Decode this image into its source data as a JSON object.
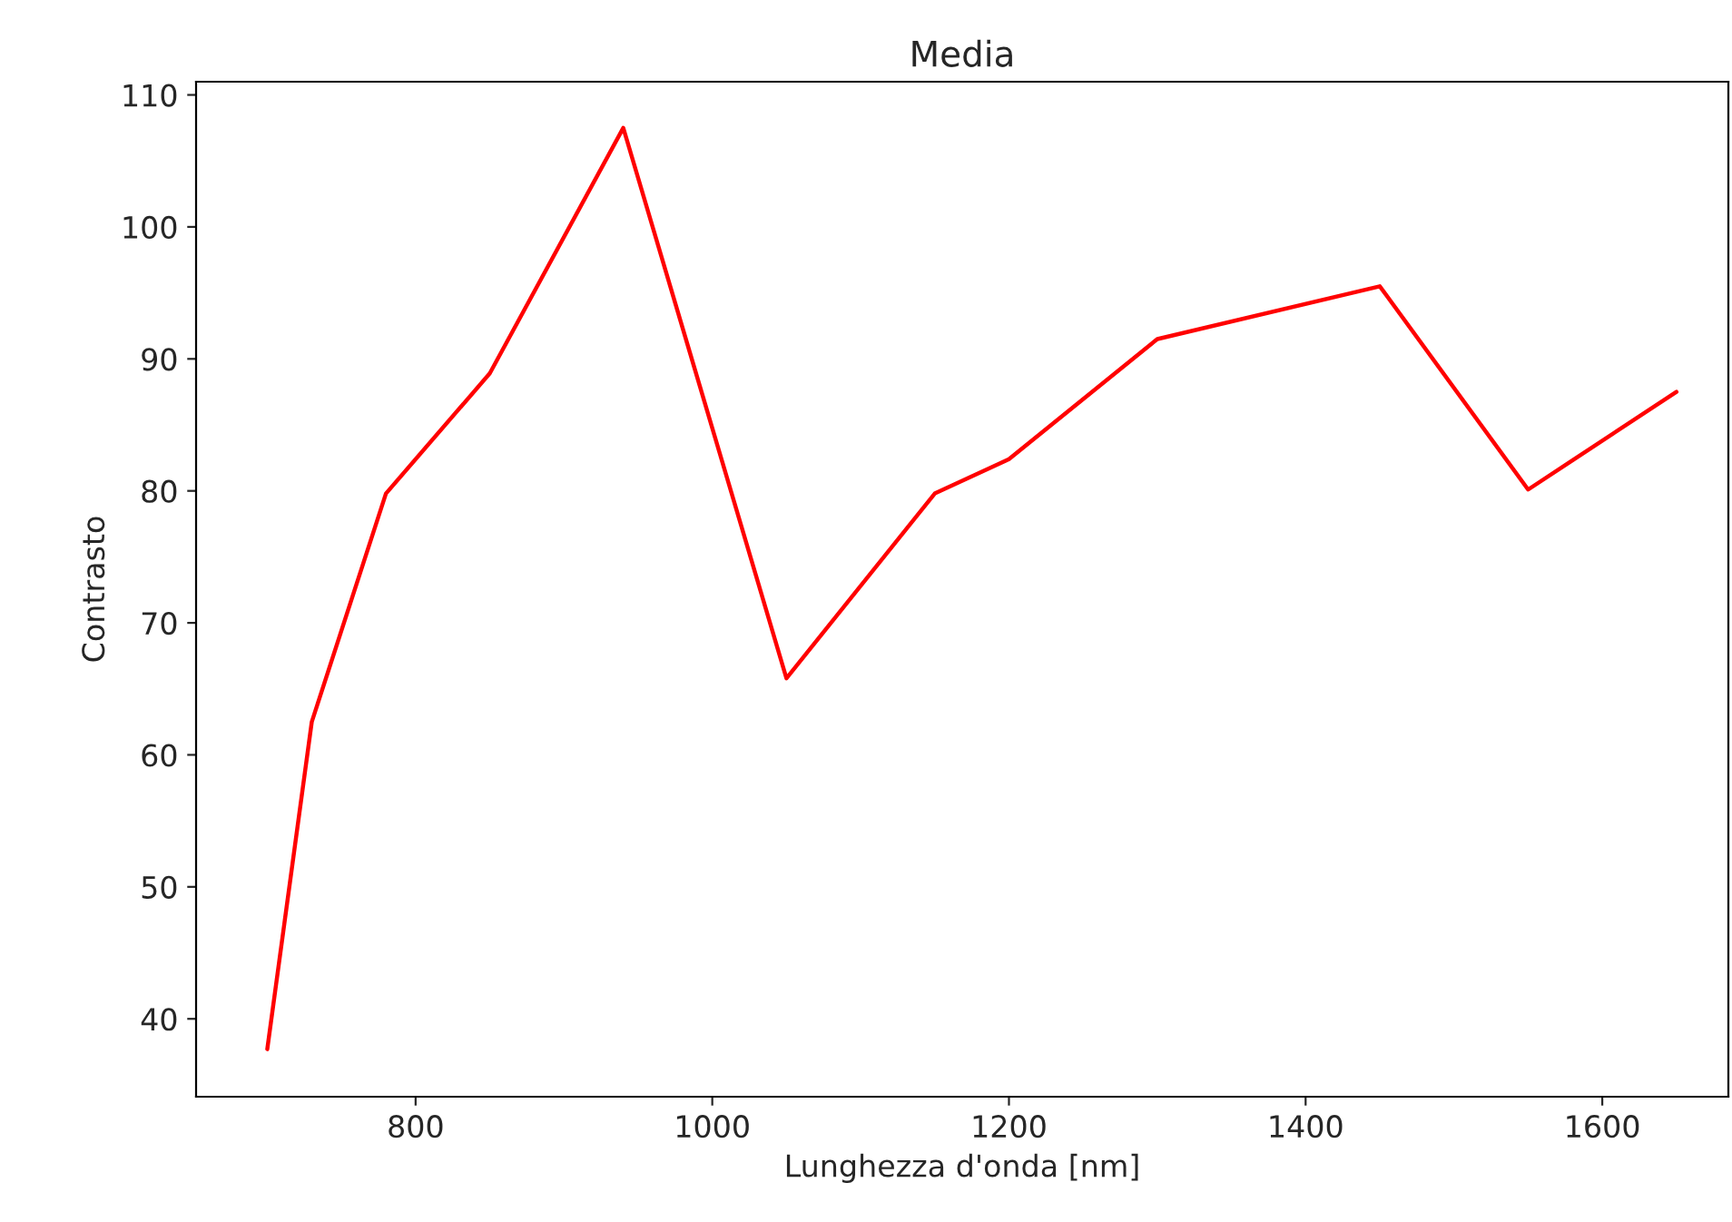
{
  "chart_data": {
    "type": "line",
    "title": "Media",
    "xlabel": "Lunghezza d'onda [nm]",
    "ylabel": "Contrasto",
    "x": [
      700,
      730,
      780,
      850,
      940,
      1050,
      1150,
      1200,
      1300,
      1450,
      1550,
      1650
    ],
    "series": [
      {
        "color": "#ff0000",
        "values": [
          37.7,
          62.5,
          79.8,
          88.9,
          107.5,
          65.8,
          79.8,
          82.4,
          91.5,
          95.5,
          80.1,
          87.5
        ]
      }
    ],
    "xlim": [
      652,
      1685
    ],
    "xticks": [
      800,
      1000,
      1200,
      1400,
      1600
    ],
    "ylim": [
      34.1,
      111
    ],
    "yticks": [
      40,
      50,
      60,
      70,
      80,
      90,
      100,
      110
    ],
    "grid": false,
    "marker": "none",
    "line_style": "solid"
  }
}
